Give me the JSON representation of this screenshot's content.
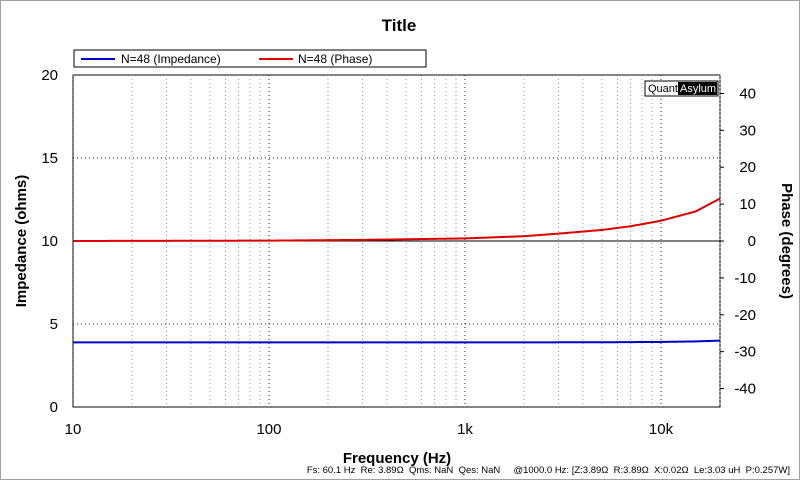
{
  "chart_data": {
    "type": "line",
    "title": "Title",
    "xlabel": "Frequency (Hz)",
    "ylabel": "Impedance (ohms)",
    "y2label": "Phase (degrees)",
    "xscale": "log",
    "xlim": [
      10,
      20000
    ],
    "ylim": [
      0,
      20
    ],
    "y2lim": [
      -45,
      45
    ],
    "x_ticks": [
      10,
      100,
      1000,
      10000
    ],
    "x_tick_labels": [
      "10",
      "100",
      "1k",
      "10k"
    ],
    "y_ticks": [
      0,
      5,
      10,
      15,
      20
    ],
    "y_tick_labels": [
      "0",
      "5",
      "10",
      "15",
      "20"
    ],
    "y2_ticks": [
      -40,
      -30,
      -20,
      -10,
      0,
      10,
      20,
      30,
      40
    ],
    "y2_tick_labels": [
      "-40",
      "-30",
      "-20",
      "-10",
      "0",
      "10",
      "20",
      "30",
      "40"
    ],
    "grid": true,
    "legend_position": "top-left",
    "series": [
      {
        "name": "N=48 (Impedance)",
        "axis": "left",
        "color": "#0000cc",
        "x": [
          10,
          100,
          1000,
          5000,
          10000,
          15000,
          20000
        ],
        "y": [
          3.89,
          3.89,
          3.89,
          3.9,
          3.92,
          3.95,
          4.0
        ]
      },
      {
        "name": "N=48 (Phase)",
        "axis": "right",
        "color": "#dd0000",
        "x": [
          10,
          100,
          300,
          1000,
          2000,
          3000,
          5000,
          7000,
          10000,
          15000,
          20000
        ],
        "y": [
          0,
          0.1,
          0.3,
          0.7,
          1.3,
          2.0,
          3.0,
          4.0,
          5.5,
          8.0,
          11.5
        ]
      }
    ],
    "brand_left": "Quant",
    "brand_right": "Asylum",
    "status_text": "Fs: 60.1 Hz  Re: 3.89Ω  Qms: NaN  Qes: NaN     @1000.0 Hz: [Z:3.89Ω  R:3.89Ω  X:0.02Ω  Le:3.03 uH  P:0.257W]"
  }
}
